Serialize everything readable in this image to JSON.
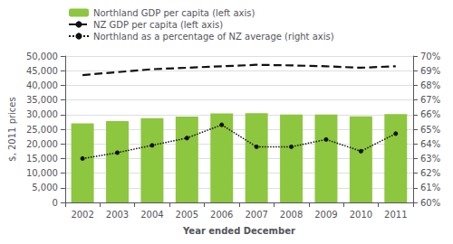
{
  "chart_data": {
    "type": "bar",
    "categories": [
      "2002",
      "2003",
      "2004",
      "2005",
      "2006",
      "2007",
      "2008",
      "2009",
      "2010",
      "2011"
    ],
    "xlabel": "Year ended December",
    "ylabel": "$, 2011 prices",
    "series": [
      {
        "name": "Northland GDP per capita (left axis)",
        "type": "bar",
        "color": "#8dc63f",
        "values": [
          27000,
          27800,
          28800,
          29300,
          30400,
          30500,
          30000,
          30000,
          29400,
          30200
        ]
      },
      {
        "name": "NZ GDP per capita (left axis)",
        "type": "line",
        "color": "#111111",
        "line_style": "dashed",
        "values": [
          43500,
          44500,
          45500,
          46000,
          46500,
          47000,
          46800,
          46500,
          46000,
          46500
        ]
      },
      {
        "name": "Northland as a percentage of NZ average (right axis)",
        "type": "line",
        "color": "#111111",
        "line_style": "dotted",
        "marker": "circle",
        "axis": "y2",
        "values": [
          63.0,
          63.4,
          63.9,
          64.4,
          65.3,
          63.8,
          63.8,
          64.3,
          63.5,
          64.7
        ]
      }
    ],
    "ylim": [
      0,
      50000
    ],
    "yticks": [
      0,
      {
        "value": 5000,
        "label": "5,000"
      },
      {
        "value": 10000,
        "label": "10,000"
      },
      {
        "value": 15000,
        "label": "15,000"
      },
      {
        "value": 20000,
        "label": "20,000"
      },
      {
        "value": 25000,
        "label": "25,000"
      },
      {
        "value": 30000,
        "label": "30,000"
      },
      {
        "value": 35000,
        "label": "35,000"
      },
      {
        "value": 40000,
        "label": "40,000"
      },
      {
        "value": 45000,
        "label": "45,000"
      },
      {
        "value": 50000,
        "label": "50,000"
      }
    ],
    "y2lim": [
      60,
      70
    ],
    "y2ticks": [
      {
        "value": 60,
        "label": "60%"
      },
      {
        "value": 61,
        "label": "61%"
      },
      {
        "value": 62,
        "label": "62%"
      },
      {
        "value": 63,
        "label": "63%"
      },
      {
        "value": 64,
        "label": "64%"
      },
      {
        "value": 65,
        "label": "65%"
      },
      {
        "value": 66,
        "label": "66%"
      },
      {
        "value": 67,
        "label": "67%"
      },
      {
        "value": 68,
        "label": "68%"
      },
      {
        "value": 69,
        "label": "69%"
      },
      {
        "value": 70,
        "label": "70%"
      }
    ],
    "grid": true,
    "legend": "top"
  }
}
